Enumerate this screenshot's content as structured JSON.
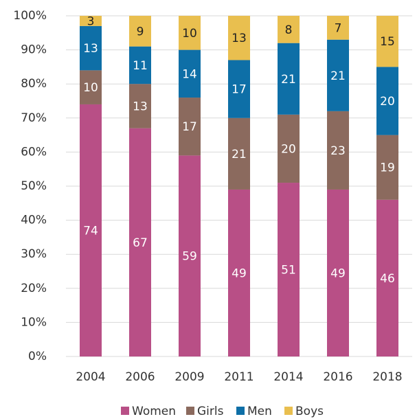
{
  "chart_data": {
    "type": "stacked_bar",
    "categories": [
      "2004",
      "2006",
      "2009",
      "2011",
      "2014",
      "2016",
      "2018"
    ],
    "series": [
      {
        "name": "Women",
        "color": "#b84f86",
        "values": [
          74,
          67,
          59,
          49,
          51,
          49,
          46
        ]
      },
      {
        "name": "Girls",
        "color": "#8b6a5e",
        "values": [
          10,
          13,
          17,
          21,
          20,
          23,
          19
        ]
      },
      {
        "name": "Men",
        "color": "#0e6fa7",
        "values": [
          13,
          11,
          14,
          17,
          21,
          21,
          20
        ]
      },
      {
        "name": "Boys",
        "color": "#e9bf4f",
        "values": [
          3,
          9,
          10,
          13,
          8,
          7,
          15
        ]
      }
    ],
    "ylim": [
      0,
      100
    ],
    "yticks": [
      {
        "value": 0,
        "label": "0%"
      },
      {
        "value": 10,
        "label": "10%"
      },
      {
        "value": 20,
        "label": "20%"
      },
      {
        "value": 30,
        "label": "30%"
      },
      {
        "value": 40,
        "label": "40%"
      },
      {
        "value": 50,
        "label": "50%"
      },
      {
        "value": 60,
        "label": "60%"
      },
      {
        "value": 70,
        "label": "70%"
      },
      {
        "value": 80,
        "label": "80%"
      },
      {
        "value": 90,
        "label": "90%"
      },
      {
        "value": 100,
        "label": "100%"
      }
    ],
    "grid": true,
    "legend": "bottom"
  }
}
